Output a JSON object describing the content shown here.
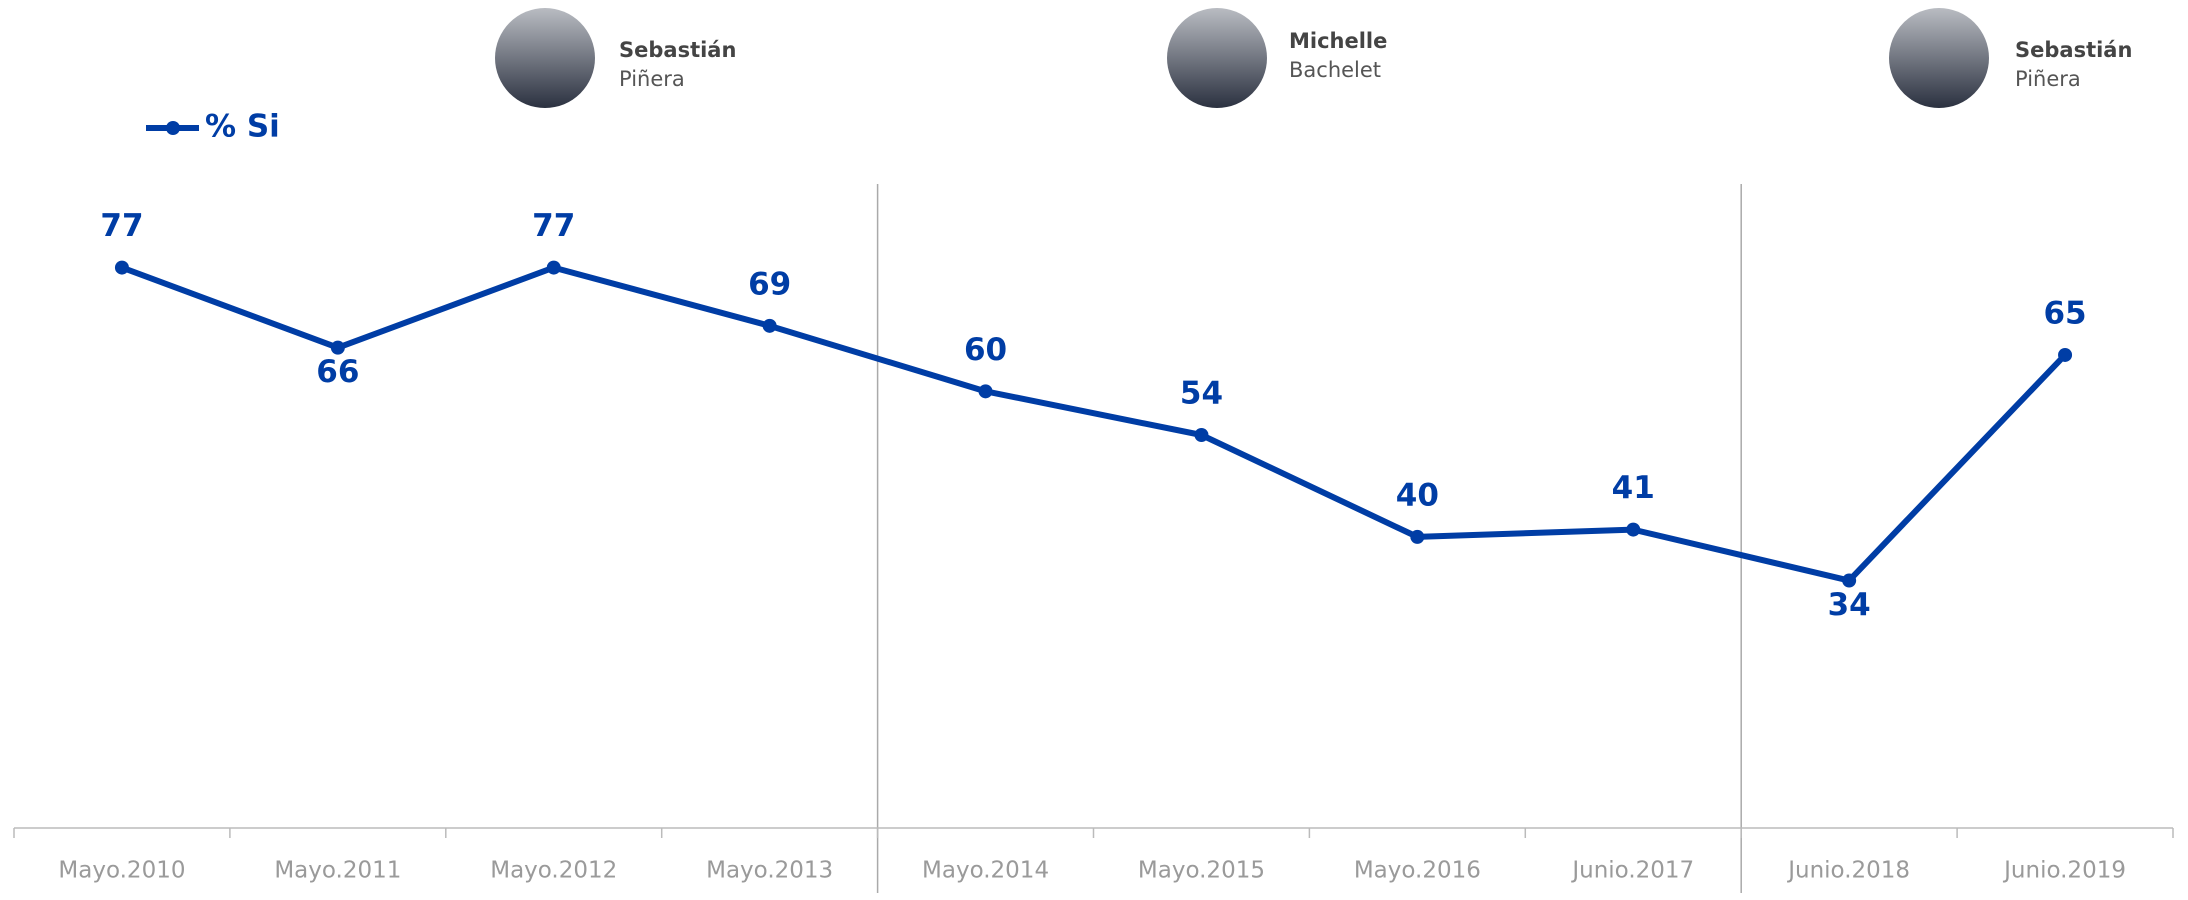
{
  "chart_data": {
    "type": "line",
    "categories": [
      "Mayo.2010",
      "Mayo.2011",
      "Mayo.2012",
      "Mayo.2013",
      "Mayo.2014",
      "Mayo.2015",
      "Mayo.2016",
      "Junio.2017",
      "Junio.2018",
      "Junio.2019"
    ],
    "series": [
      {
        "name": "% Si",
        "color": "#003DA5",
        "values": [
          77,
          66,
          77,
          69,
          60,
          54,
          40,
          41,
          34,
          65
        ]
      }
    ],
    "ylim": [
      0,
      90
    ],
    "legend": "top-left",
    "annotations": [
      {
        "first": "Sebastián",
        "last": "Piñera"
      },
      {
        "first": "Michelle",
        "last": "Bachelet"
      },
      {
        "first": "Sebastián",
        "last": "Piñera"
      }
    ]
  }
}
